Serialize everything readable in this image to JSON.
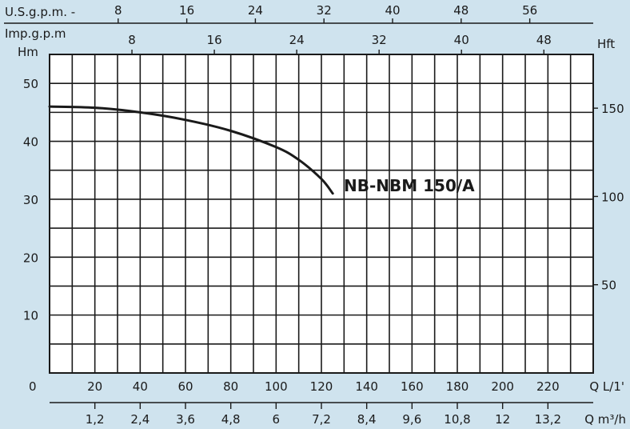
{
  "chart_data": {
    "type": "line",
    "series": [
      {
        "name": "NB-NBM 150/A",
        "x": [
          0,
          20,
          40,
          60,
          80,
          100,
          110,
          120,
          125
        ],
        "y": [
          46,
          45.8,
          45,
          43.7,
          41.8,
          39,
          36.8,
          33.5,
          31
        ]
      }
    ],
    "x_unit_label": "Q L/1'",
    "y_unit_label": "Hm",
    "y2_unit_label": "Hft",
    "x_ticks": [
      "20",
      "40",
      "60",
      "80",
      "100",
      "120",
      "140",
      "160",
      "180",
      "200",
      "220"
    ],
    "x_ticks_values": [
      20,
      40,
      60,
      80,
      100,
      120,
      140,
      160,
      180,
      200,
      220
    ],
    "y_ticks": [
      "10",
      "20",
      "30",
      "40",
      "50"
    ],
    "y_ticks_values": [
      10,
      20,
      30,
      40,
      50
    ],
    "origin_label": "0",
    "m3h_label": "Q m³/h",
    "m3h_ticks": [
      "1,2",
      "2,4",
      "3,6",
      "4,8",
      "6",
      "7,2",
      "8,4",
      "9,6",
      "10,8",
      "12",
      "13,2"
    ],
    "m3h_ticks_values": [
      1.2,
      2.4,
      3.6,
      4.8,
      6,
      7.2,
      8.4,
      9.6,
      10.8,
      12,
      13.2
    ],
    "usgpm_label": "U.S.g.p.m. -",
    "usgpm_ticks": [
      "8",
      "16",
      "24",
      "32",
      "40",
      "48",
      "56"
    ],
    "usgpm_ticks_values": [
      8,
      16,
      24,
      32,
      40,
      48,
      56
    ],
    "impgpm_label": "Imp.g.p.m",
    "impgpm_ticks": [
      "8",
      "16",
      "24",
      "32",
      "40",
      "48"
    ],
    "impgpm_ticks_values": [
      8,
      16,
      24,
      32,
      40,
      48
    ],
    "hft_ticks": [
      "50",
      "100",
      "150"
    ],
    "hft_ticks_values": [
      50,
      100,
      150
    ],
    "xlim": [
      0,
      240
    ],
    "ylim": [
      0,
      55
    ],
    "grid": true,
    "colors": {
      "background": "#cfe3ee",
      "plot": "#ffffff",
      "ink": "#1a1a1a"
    }
  }
}
